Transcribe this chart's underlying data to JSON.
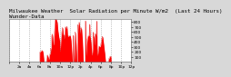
{
  "title": "Milwaukee Weather  Solar Radiation per Minute W/m2  (Last 24 Hours)",
  "title2": "Wunder-Data",
  "bg_color": "#d8d8d8",
  "plot_bg_color": "#ffffff",
  "fill_color": "#ff0000",
  "line_color": "#dd0000",
  "ylim": [
    0,
    850
  ],
  "yticks": [
    100,
    200,
    300,
    400,
    500,
    600,
    700,
    800
  ],
  "num_points": 1440,
  "grid_color": "#888888",
  "title_fontsize": 4.2,
  "tick_fontsize": 3.2
}
